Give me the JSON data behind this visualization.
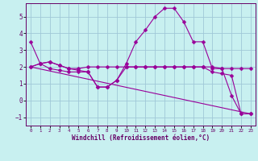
{
  "xlabel": "Windchill (Refroidissement éolien,°C)",
  "bg_color": "#c8f0f0",
  "grid_color": "#a0c8d8",
  "line_color": "#990099",
  "xlim": [
    -0.5,
    23.5
  ],
  "ylim": [
    -1.5,
    5.8
  ],
  "yticks": [
    -1,
    0,
    1,
    2,
    3,
    4,
    5
  ],
  "xticks": [
    0,
    1,
    2,
    3,
    4,
    5,
    6,
    7,
    8,
    9,
    10,
    11,
    12,
    13,
    14,
    15,
    16,
    17,
    18,
    19,
    20,
    21,
    22,
    23
  ],
  "lines": [
    {
      "x": [
        0,
        1,
        2,
        3,
        4,
        5,
        6,
        7,
        8,
        9,
        10,
        11,
        12,
        13,
        14,
        15,
        16,
        17,
        18,
        19,
        20,
        21,
        22,
        23
      ],
      "y": [
        3.5,
        2.2,
        1.9,
        1.8,
        1.7,
        1.7,
        1.7,
        0.8,
        0.8,
        1.2,
        2.2,
        3.5,
        4.2,
        5.0,
        5.5,
        5.5,
        4.7,
        3.5,
        3.5,
        1.9,
        1.9,
        0.3,
        -0.8,
        -0.8
      ],
      "marker": true
    },
    {
      "x": [
        0,
        1,
        2,
        3,
        4,
        5,
        6,
        7,
        8,
        9,
        10,
        11,
        12,
        13,
        14,
        15,
        16,
        17,
        18,
        19,
        20,
        21,
        22,
        23
      ],
      "y": [
        2.0,
        2.2,
        2.3,
        2.1,
        1.9,
        1.9,
        2.0,
        2.0,
        2.0,
        2.0,
        2.0,
        2.0,
        2.0,
        2.0,
        2.0,
        2.0,
        2.0,
        2.0,
        2.0,
        2.0,
        1.9,
        1.9,
        1.9,
        1.9
      ],
      "marker": true
    },
    {
      "x": [
        0,
        1,
        2,
        3,
        4,
        5,
        6,
        7,
        8,
        9,
        10,
        11,
        12,
        13,
        14,
        15,
        16,
        17,
        18,
        19,
        20,
        21,
        22,
        23
      ],
      "y": [
        2.0,
        2.2,
        2.3,
        2.1,
        1.9,
        1.8,
        1.7,
        0.8,
        0.8,
        1.2,
        2.0,
        2.0,
        2.0,
        2.0,
        2.0,
        2.0,
        2.0,
        2.0,
        2.0,
        1.7,
        1.6,
        1.5,
        -0.8,
        -0.8
      ],
      "marker": true
    },
    {
      "x": [
        0,
        23
      ],
      "y": [
        2.0,
        -0.8
      ],
      "marker": false
    }
  ],
  "marker_style": "D",
  "markersize": 2.5
}
